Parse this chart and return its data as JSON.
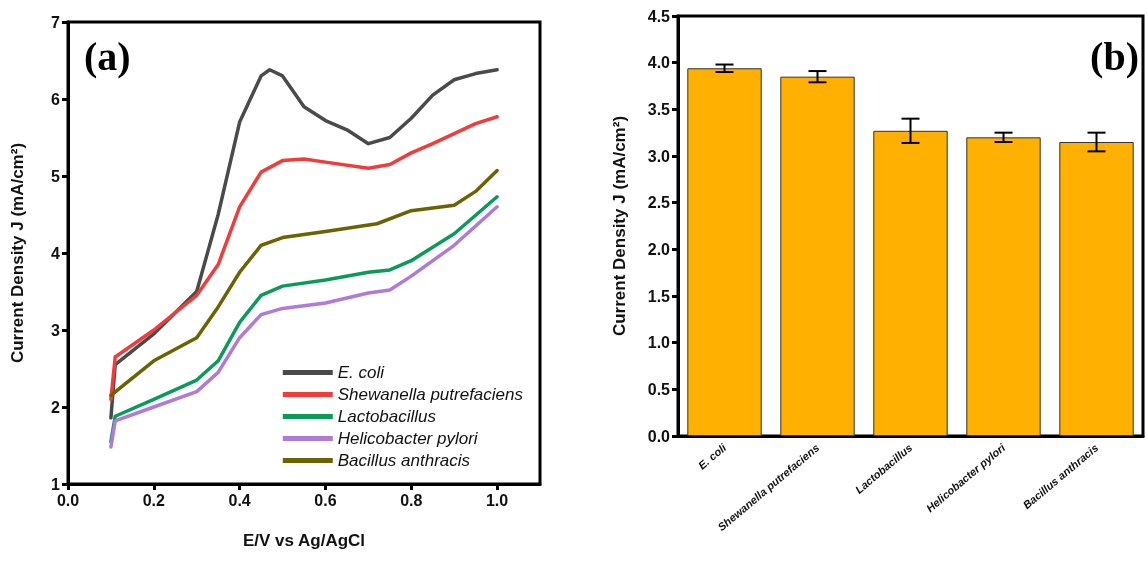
{
  "chart_data": [
    {
      "type": "line",
      "xlabel": "E/V vs Ag/AgCl",
      "ylabel": "Current Density J (mA/cm²)",
      "annotations": [
        "(a)"
      ],
      "xlim": [
        0,
        1.1
      ],
      "ylim": [
        1,
        7
      ],
      "xticks": [
        {
          "value": 0,
          "label": "0.0"
        },
        {
          "value": 0.2,
          "label": "0.2"
        },
        {
          "value": 0.4,
          "label": "0.4"
        },
        {
          "value": 0.6,
          "label": "0.6"
        },
        {
          "value": 0.8,
          "label": "0.8"
        },
        {
          "value": 1,
          "label": "1.0"
        }
      ],
      "yticks": [
        1,
        2,
        3,
        4,
        5,
        6,
        7
      ],
      "grid": false,
      "legend": "bottom right",
      "marker": "none",
      "line_style": "solid",
      "series": [
        {
          "name": "E. coli",
          "color": "#4a4a4a",
          "x": [
            0.1,
            0.11,
            0.2,
            0.3,
            0.35,
            0.4,
            0.45,
            0.47,
            0.5,
            0.55,
            0.6,
            0.65,
            0.7,
            0.75,
            0.8,
            0.85,
            0.9,
            0.95,
            1.0
          ],
          "values": [
            1.86,
            2.55,
            2.95,
            3.5,
            4.5,
            5.7,
            6.3,
            6.38,
            6.3,
            5.9,
            5.72,
            5.6,
            5.42,
            5.5,
            5.75,
            6.05,
            6.25,
            6.33,
            6.38
          ]
        },
        {
          "name": "Shewanella putrefaciens",
          "color": "#f23b3b",
          "x": [
            0.1,
            0.11,
            0.2,
            0.3,
            0.35,
            0.4,
            0.45,
            0.5,
            0.55,
            0.6,
            0.7,
            0.75,
            0.8,
            0.85,
            0.9,
            0.95,
            1.0
          ],
          "values": [
            2.1,
            2.65,
            3.0,
            3.45,
            3.85,
            4.6,
            5.05,
            5.2,
            5.22,
            5.18,
            5.1,
            5.15,
            5.3,
            5.42,
            5.55,
            5.68,
            5.77
          ]
        },
        {
          "name": "Lactobacillus",
          "color": "#0a9a5a",
          "x": [
            0.1,
            0.11,
            0.2,
            0.3,
            0.35,
            0.4,
            0.45,
            0.5,
            0.6,
            0.7,
            0.75,
            0.8,
            0.9,
            1.0
          ],
          "values": [
            1.55,
            1.88,
            2.1,
            2.35,
            2.6,
            3.1,
            3.45,
            3.57,
            3.65,
            3.75,
            3.78,
            3.9,
            4.25,
            4.73
          ]
        },
        {
          "name": "Helicobacter pylori",
          "color": "#b07ad8",
          "x": [
            0.1,
            0.11,
            0.2,
            0.3,
            0.35,
            0.4,
            0.45,
            0.5,
            0.6,
            0.7,
            0.75,
            0.8,
            0.9,
            1.0
          ],
          "values": [
            1.48,
            1.82,
            2.0,
            2.2,
            2.45,
            2.9,
            3.2,
            3.28,
            3.35,
            3.48,
            3.52,
            3.7,
            4.1,
            4.6
          ]
        },
        {
          "name": "Bacillus anthracis",
          "color": "#6b6200",
          "x": [
            0.1,
            0.2,
            0.3,
            0.35,
            0.4,
            0.45,
            0.5,
            0.6,
            0.72,
            0.8,
            0.9,
            0.95,
            1.0
          ],
          "values": [
            2.15,
            2.6,
            2.9,
            3.3,
            3.75,
            4.1,
            4.2,
            4.28,
            4.38,
            4.55,
            4.62,
            4.8,
            5.07
          ]
        }
      ]
    },
    {
      "type": "bar",
      "ylabel": "Current Density J (mA/cm²)",
      "annotations": [
        "(b)"
      ],
      "categories": [
        "E. coli",
        "Shewanella putrefaciens",
        "Lactobacillus",
        "Helicobacter pylori",
        "Bacillus anthracis"
      ],
      "values": [
        3.94,
        3.85,
        3.27,
        3.2,
        3.15
      ],
      "errors": [
        0.04,
        0.06,
        0.13,
        0.05,
        0.1
      ],
      "color": "#ffb000",
      "ylim": [
        0,
        4.5
      ],
      "yticks": [
        {
          "value": 0,
          "label": "0.0"
        },
        {
          "value": 0.5,
          "label": "0.5"
        },
        {
          "value": 1,
          "label": "1.0"
        },
        {
          "value": 1.5,
          "label": "1.5"
        },
        {
          "value": 2,
          "label": "2.0"
        },
        {
          "value": 2.5,
          "label": "2.5"
        },
        {
          "value": 3,
          "label": "3.0"
        },
        {
          "value": 3.5,
          "label": "3.5"
        },
        {
          "value": 4,
          "label": "4.0"
        },
        {
          "value": 4.5,
          "label": "4.5"
        }
      ],
      "grid": false,
      "legend": false
    }
  ]
}
